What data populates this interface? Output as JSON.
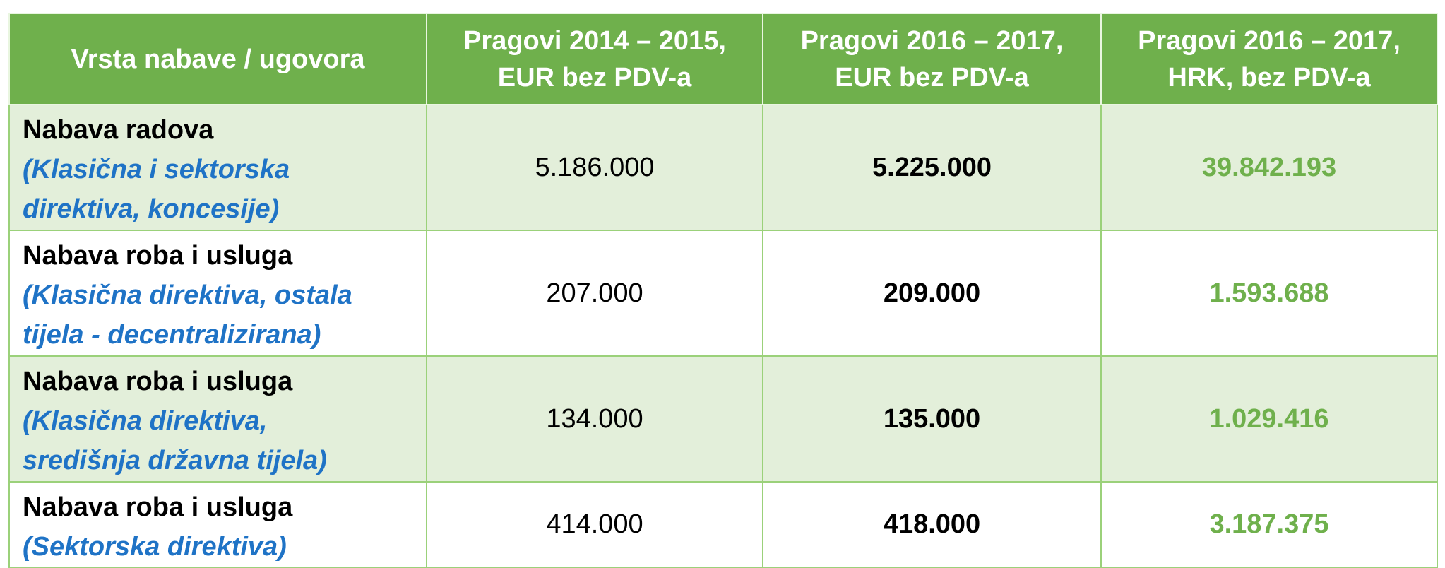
{
  "table": {
    "headers": [
      [
        "Vrsta nabave / ugovora"
      ],
      [
        "Pragovi 2014 – 2015,",
        "EUR bez PDV-a"
      ],
      [
        "Pragovi 2016 – 2017,",
        "EUR bez PDV-a"
      ],
      [
        "Pragovi 2016 – 2017,",
        "HRK, bez PDV-a"
      ]
    ],
    "rows": [
      {
        "type": "Nabava radova",
        "note": [
          "(Klasična i sektorska",
          "direktiva, koncesije)"
        ],
        "eur_2014_2015": "5.186.000",
        "eur_2016_2017": "5.225.000",
        "hrk_2016_2017": "39.842.193"
      },
      {
        "type": "Nabava roba i usluga",
        "note": [
          "(Klasična direktiva, ostala",
          "tijela - decentralizirana)"
        ],
        "eur_2014_2015": "207.000",
        "eur_2016_2017": "209.000",
        "hrk_2016_2017": "1.593.688"
      },
      {
        "type": "Nabava roba i usluga",
        "note": [
          "(Klasična direktiva,",
          "središnja državna tijela)"
        ],
        "eur_2014_2015": "134.000",
        "eur_2016_2017": "135.000",
        "hrk_2016_2017": "1.029.416"
      },
      {
        "type": "Nabava roba i usluga",
        "note": [
          "(Sektorska direktiva)"
        ],
        "eur_2014_2015": "414.000",
        "eur_2016_2017": "418.000",
        "hrk_2016_2017": "3.187.375"
      }
    ]
  },
  "colors": {
    "header_bg": "#6fb04c",
    "shaded_row_bg": "#e3efda",
    "border": "#9bd17a",
    "note_text": "#1f73c6",
    "hrk_text": "#6fb04c"
  }
}
